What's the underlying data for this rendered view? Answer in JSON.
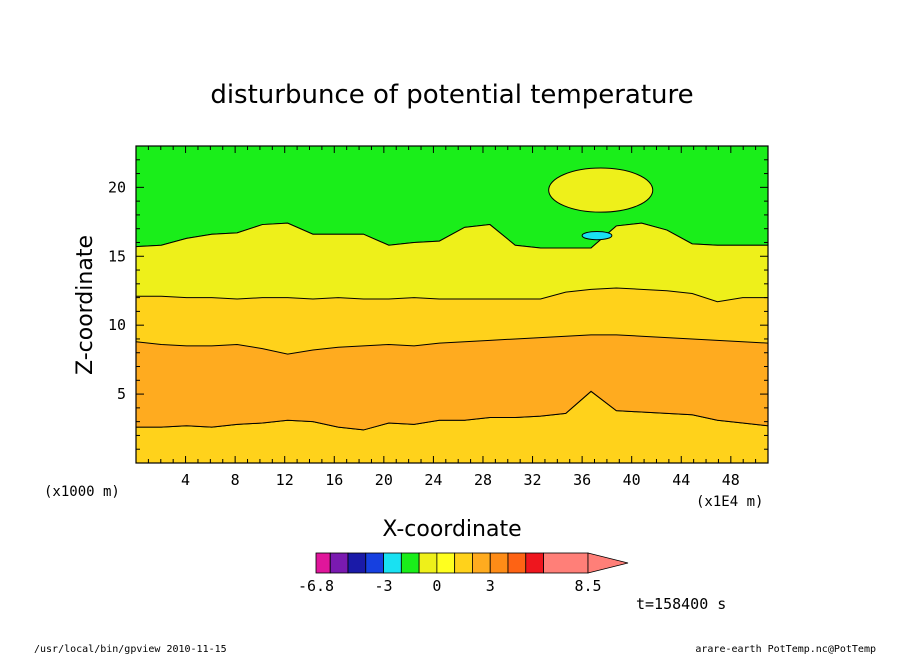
{
  "chart_data": {
    "type": "heatmap",
    "title": "disturbunce of potential temperature",
    "xlabel": "X-coordinate",
    "ylabel": "Z-coordinate",
    "x_unit": "(x1E4 m)",
    "y_unit": "(x1000 m)",
    "xlim": [
      0,
      51
    ],
    "ylim": [
      0,
      23
    ],
    "x_ticks": [
      4,
      8,
      12,
      16,
      20,
      24,
      28,
      32,
      36,
      40,
      44,
      48
    ],
    "y_ticks": [
      5,
      10,
      15,
      20
    ],
    "colorbar": {
      "levels": [
        -6.8,
        -6,
        -5,
        -4,
        -3,
        -2,
        -1,
        0,
        1,
        2,
        3,
        4,
        5,
        6,
        8.5
      ],
      "tick_labels": [
        "-6.8",
        "-3",
        "0",
        "3",
        "8.5"
      ],
      "colors": [
        "#e0169b",
        "#7a1ab0",
        "#1a1aa8",
        "#1640e0",
        "#19e1f2",
        "#1aee1a",
        "#eef01a",
        "#ffff1f",
        "#ffd21b",
        "#ffab1f",
        "#fe8c17",
        "#fe6314",
        "#ee161e",
        "#ff7f78"
      ],
      "extend": "max"
    },
    "contour_levels": [
      {
        "level": 0,
        "color": "#19ee14",
        "region": "upper layer above ~16",
        "z": [
          15.7,
          15.8,
          16.3,
          16.6,
          16.7,
          17.3,
          17.4,
          16.6,
          16.6,
          16.6,
          15.8,
          16.0,
          16.1,
          17.1,
          17.3,
          15.8,
          15.6,
          15.6,
          15.6,
          17.2,
          17.4,
          16.9,
          15.9,
          15.8,
          15.8,
          15.8
        ]
      },
      {
        "level": 1,
        "color": "#eefe14",
        "region": "band from ~12 to ~16",
        "z": [
          12.1,
          12.1,
          12.0,
          12.0,
          11.9,
          12.0,
          12.0,
          11.9,
          12.0,
          11.9,
          11.9,
          12.0,
          11.9,
          11.9,
          11.9,
          11.9,
          11.9,
          12.4,
          12.6,
          12.7,
          12.6,
          12.5,
          12.3,
          11.7,
          12.0,
          12.0
        ]
      },
      {
        "level": 2,
        "color": "#ffd10f",
        "region": "band from ~8.7 to ~12",
        "z": [
          8.8,
          8.6,
          8.5,
          8.5,
          8.6,
          8.3,
          7.9,
          8.2,
          8.4,
          8.5,
          8.6,
          8.5,
          8.7,
          8.8,
          8.9,
          9.0,
          9.1,
          9.2,
          9.3,
          9.3,
          9.2,
          9.1,
          9.0,
          8.9,
          8.8,
          8.7
        ]
      },
      {
        "level": 3,
        "color": "#ff9905",
        "region": "band from ~3 to ~8.7",
        "z": [
          2.6,
          2.6,
          2.7,
          2.6,
          2.8,
          2.9,
          3.1,
          3.0,
          2.6,
          2.4,
          2.9,
          2.8,
          3.1,
          3.1,
          3.3,
          3.3,
          3.4,
          3.6,
          5.2,
          3.8,
          3.7,
          3.6,
          3.5,
          3.1,
          2.9,
          2.7
        ]
      }
    ],
    "features": [
      {
        "type": "cell",
        "level": 1,
        "center_x": 37.5,
        "center_z": 19.8,
        "half_width": 4.2,
        "half_height": 1.6
      },
      {
        "type": "cell",
        "level": -3,
        "center_x": 37.2,
        "center_z": 16.5,
        "half_width": 1.2,
        "half_height": 0.3
      }
    ],
    "time_label": "t=158400 s",
    "footer_left": "/usr/local/bin/gpview  2010-11-15",
    "footer_right": "arare-earth_PotTemp.nc@PotTemp"
  }
}
